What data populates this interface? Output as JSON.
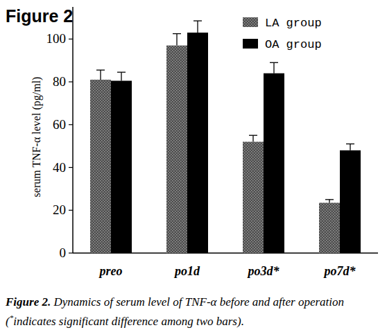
{
  "chart_data": {
    "type": "bar",
    "title": "Figure 2",
    "y_label": "serum TNF-α level (pg/ml)",
    "caption_label": "Figure 2.",
    "caption": "Dynamics of serum level of TNF-α before and after operation (*indicates significant difference among two bars).",
    "categories": [
      "preo",
      "po1d",
      "po3d*",
      "po7d*"
    ],
    "series": [
      {
        "name": "LA group",
        "color": "#4d4d4d",
        "marker": "dotted",
        "values": [
          81,
          97,
          52,
          23.5
        ],
        "errors": [
          4.5,
          5.5,
          3,
          1.5
        ]
      },
      {
        "name": "OA group",
        "color": "#000000",
        "values": [
          80.5,
          103,
          84,
          48
        ],
        "errors": [
          4,
          5.5,
          5,
          3
        ]
      }
    ],
    "ylim": [
      0,
      115
    ],
    "yticks": [
      0,
      20,
      40,
      60,
      80,
      100
    ],
    "grid": false,
    "legend": "top-right"
  }
}
